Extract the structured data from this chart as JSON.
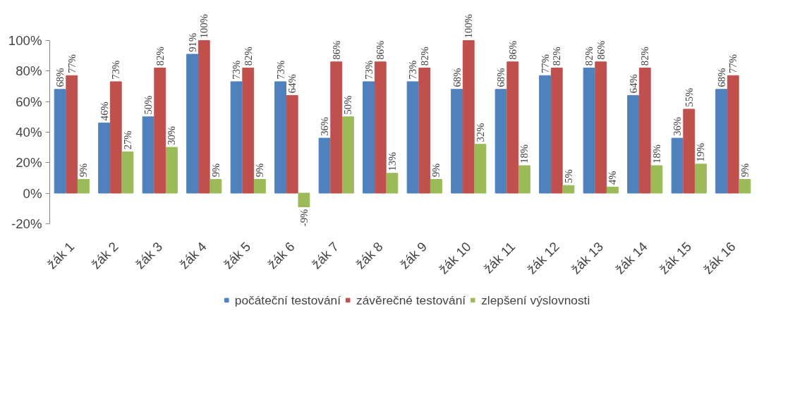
{
  "chart_data": {
    "type": "bar",
    "categories": [
      "žák 1",
      "žák 2",
      "žák 3",
      "žák 4",
      "žák 5",
      "žák 6",
      "žák 7",
      "žák 8",
      "žák 9",
      "žák 10",
      "žák 11",
      "žák 12",
      "žák 13",
      "žák 14",
      "žák 15",
      "žák 16"
    ],
    "series": [
      {
        "name": "počáteční testování",
        "color": "#4f81bd",
        "values": [
          68,
          46,
          50,
          91,
          73,
          73,
          36,
          73,
          73,
          68,
          68,
          77,
          82,
          64,
          36,
          68
        ],
        "value_labels": [
          "68%",
          "46%",
          "50%",
          "91%",
          "73%",
          "73%",
          "36%",
          "73%",
          "73%",
          "68%",
          "68%",
          "77%",
          "82%",
          "64%",
          "36%",
          "68%"
        ]
      },
      {
        "name": "závěrečné testování",
        "color": "#c0504d",
        "values": [
          77,
          73,
          82,
          100,
          82,
          64,
          86,
          86,
          82,
          100,
          86,
          82,
          86,
          82,
          55,
          77
        ],
        "value_labels": [
          "77%",
          "73%",
          "82%",
          "100%",
          "82%",
          "64%",
          "86%",
          "86%",
          "82%",
          "100%",
          "86%",
          "82%",
          "86%",
          "82%",
          "55%",
          "77%"
        ]
      },
      {
        "name": "zlepšení výslovnosti",
        "color": "#9bbb59",
        "values": [
          9,
          27,
          30,
          9,
          9,
          -9,
          50,
          13,
          9,
          32,
          18,
          5,
          4,
          18,
          19,
          9
        ],
        "value_labels": [
          "9%",
          "27%",
          "30%",
          "9%",
          "9%",
          "-9%",
          "50%",
          "13%",
          "9%",
          "32%",
          "18%",
          "5%",
          "4%",
          "18%",
          "19%",
          "9%"
        ]
      }
    ],
    "ylim": [
      -20,
      100
    ],
    "yticks": [
      {
        "value": -20,
        "label": "-20%"
      },
      {
        "value": 0,
        "label": "0%"
      },
      {
        "value": 20,
        "label": "20%"
      },
      {
        "value": 40,
        "label": "40%"
      },
      {
        "value": 60,
        "label": "60%"
      },
      {
        "value": 80,
        "label": "80%"
      },
      {
        "value": 100,
        "label": "100%"
      }
    ],
    "grid": false,
    "legend": "bottom"
  }
}
